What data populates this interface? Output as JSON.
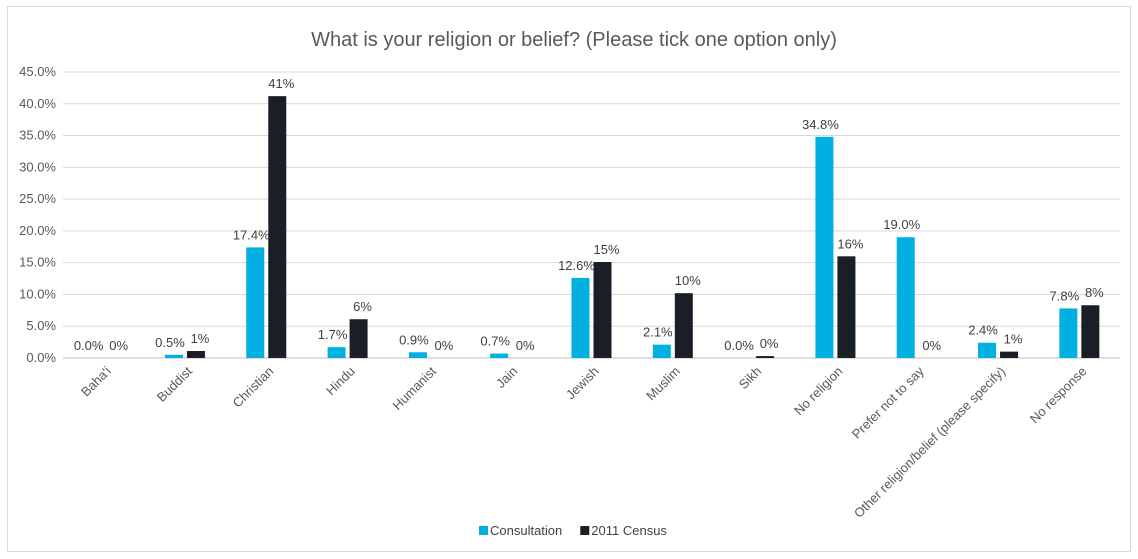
{
  "chart_data": {
    "type": "bar",
    "title": "What is your religion or belief? (Please tick one option only)",
    "categories": [
      "Baha'i",
      "Buddist",
      "Christian",
      "Hindu",
      "Humanist",
      "Jain",
      "Jewish",
      "Muslim",
      "Sikh",
      "No religion",
      "Prefer not to say",
      "Other religion/belief (please specify)",
      "No response"
    ],
    "series": [
      {
        "name": "Consultation",
        "color": "#00b0e0",
        "values": [
          0.0,
          0.5,
          17.4,
          1.7,
          0.9,
          0.7,
          12.6,
          2.1,
          0.0,
          34.8,
          19.0,
          2.4,
          7.8
        ],
        "labels": [
          "0.0%",
          "0.5%",
          "17.4%",
          "1.7%",
          "0.9%",
          "0.7%",
          "12.6%",
          "2.1%",
          "0.0%",
          "34.8%",
          "19.0%",
          "2.4%",
          "7.8%"
        ]
      },
      {
        "name": "2011 Census",
        "color": "#1a1e26",
        "values": [
          0,
          1.1,
          41.2,
          6.1,
          0,
          0,
          15.1,
          10.2,
          0.3,
          16.0,
          0,
          1.0,
          8.3
        ],
        "labels": [
          "0%",
          "1%",
          "41%",
          "6%",
          "0%",
          "0%",
          "15%",
          "10%",
          "0%",
          "16%",
          "0%",
          "1%",
          "8%"
        ]
      }
    ],
    "yticks": [
      "0.0%",
      "5.0%",
      "10.0%",
      "15.0%",
      "20.0%",
      "25.0%",
      "30.0%",
      "35.0%",
      "40.0%",
      "45.0%"
    ],
    "ylim": [
      0,
      45
    ],
    "grid": true,
    "legend_position": "bottom"
  }
}
